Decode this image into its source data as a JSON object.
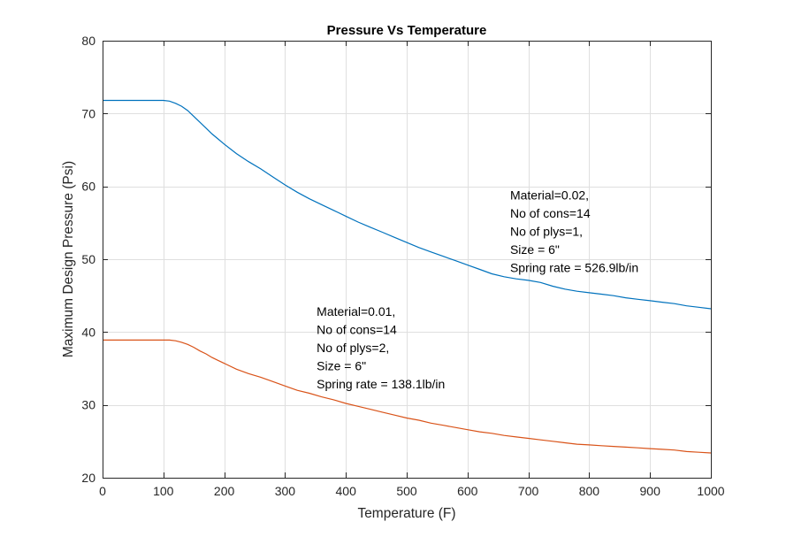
{
  "chart_data": {
    "type": "line",
    "title": "Pressure Vs Temperature",
    "xlabel": "Temperature (F)",
    "ylabel": "Maximum Design Pressure (Psi)",
    "xlim": [
      0,
      1000
    ],
    "ylim": [
      20,
      80
    ],
    "xticks": [
      0,
      100,
      200,
      300,
      400,
      500,
      600,
      700,
      800,
      900,
      1000
    ],
    "yticks": [
      20,
      30,
      40,
      50,
      60,
      70,
      80
    ],
    "grid": true,
    "series": [
      {
        "color": "#0072BD",
        "x": [
          0,
          20,
          40,
          60,
          80,
          100,
          110,
          120,
          130,
          140,
          150,
          160,
          170,
          180,
          190,
          200,
          220,
          240,
          260,
          280,
          300,
          320,
          340,
          360,
          380,
          400,
          420,
          440,
          460,
          480,
          500,
          520,
          540,
          560,
          580,
          600,
          620,
          640,
          660,
          680,
          700,
          720,
          740,
          760,
          780,
          800,
          820,
          840,
          860,
          880,
          900,
          920,
          940,
          960,
          980,
          1000
        ],
        "y": [
          71.8,
          71.8,
          71.8,
          71.8,
          71.8,
          71.8,
          71.7,
          71.4,
          71.0,
          70.4,
          69.6,
          68.8,
          68.0,
          67.2,
          66.5,
          65.8,
          64.5,
          63.4,
          62.4,
          61.3,
          60.2,
          59.2,
          58.3,
          57.5,
          56.7,
          55.9,
          55.1,
          54.4,
          53.7,
          53.0,
          52.3,
          51.6,
          51.0,
          50.4,
          49.8,
          49.2,
          48.6,
          48.0,
          47.6,
          47.3,
          47.1,
          46.8,
          46.3,
          45.9,
          45.6,
          45.4,
          45.2,
          45.0,
          44.7,
          44.5,
          44.3,
          44.1,
          43.9,
          43.6,
          43.4,
          43.2
        ]
      },
      {
        "color": "#D95319",
        "x": [
          0,
          20,
          40,
          60,
          80,
          100,
          110,
          120,
          130,
          140,
          150,
          160,
          170,
          180,
          190,
          200,
          220,
          240,
          260,
          280,
          300,
          320,
          340,
          360,
          380,
          400,
          420,
          440,
          460,
          480,
          500,
          520,
          540,
          560,
          580,
          600,
          620,
          640,
          660,
          680,
          700,
          720,
          740,
          760,
          780,
          800,
          820,
          840,
          860,
          880,
          900,
          920,
          940,
          960,
          980,
          1000
        ],
        "y": [
          38.9,
          38.9,
          38.9,
          38.9,
          38.9,
          38.9,
          38.9,
          38.8,
          38.6,
          38.3,
          37.9,
          37.4,
          37.0,
          36.5,
          36.1,
          35.7,
          34.9,
          34.3,
          33.8,
          33.2,
          32.6,
          32.0,
          31.6,
          31.1,
          30.7,
          30.2,
          29.8,
          29.4,
          29.0,
          28.6,
          28.2,
          27.9,
          27.5,
          27.2,
          26.9,
          26.6,
          26.3,
          26.1,
          25.8,
          25.6,
          25.4,
          25.2,
          25.0,
          24.8,
          24.6,
          24.5,
          24.4,
          24.3,
          24.2,
          24.1,
          24.0,
          23.9,
          23.8,
          23.6,
          23.5,
          23.4
        ]
      }
    ],
    "annotations": [
      {
        "x": 670,
        "y": 58.2,
        "lines": [
          "Material=0.02,",
          "No of cons=14",
          "No of plys=1,",
          "Size = 6\"",
          "Spring rate = 526.9lb/in"
        ]
      },
      {
        "x": 352,
        "y": 42.2,
        "lines": [
          "Material=0.01,",
          "No of cons=14",
          "No of plys=2,",
          "Size = 6\"",
          "Spring rate = 138.1lb/in"
        ]
      }
    ]
  }
}
